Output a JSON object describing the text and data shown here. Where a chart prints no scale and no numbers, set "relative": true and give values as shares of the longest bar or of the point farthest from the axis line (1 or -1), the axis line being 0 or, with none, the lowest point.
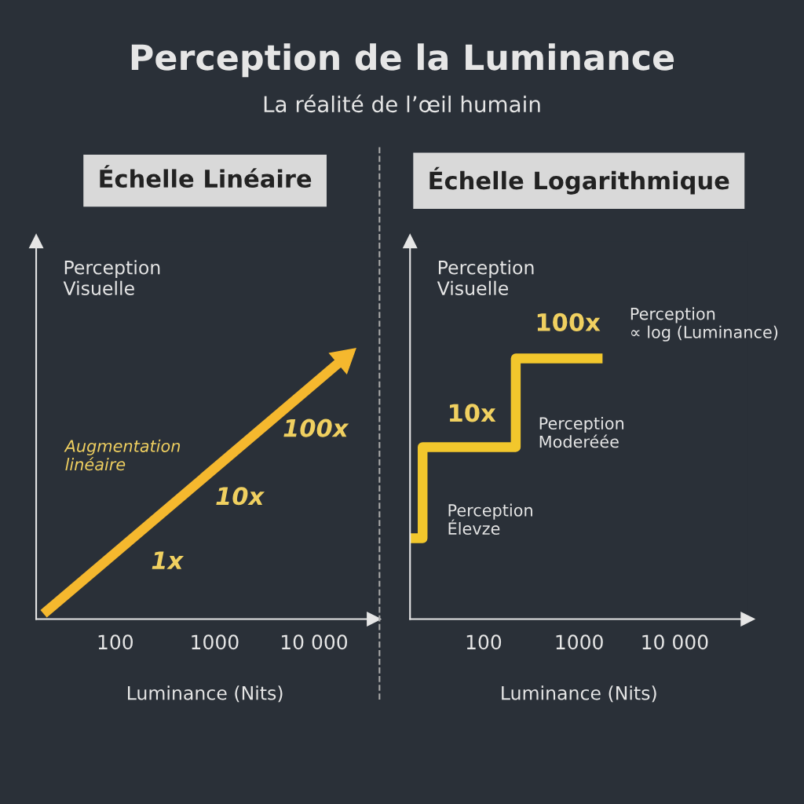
{
  "chart_data": [
    {
      "type": "line",
      "title": "Échelle Linéaire",
      "xlabel": "Luminance (Nits)",
      "ylabel": "Perception Visuelle",
      "relative": true,
      "log": "x",
      "xlim": [
        16,
        40000
      ],
      "xticks": [
        100,
        1000,
        {
          "value": 10000,
          "label": "10 000"
        }
      ],
      "tick_labels": "x",
      "grid": false,
      "series": [
        {
          "color": "#f5b82e",
          "x": [
            19,
            20000
          ],
          "values": [
            0.02,
            1
          ]
        }
      ],
      "annotations": [
        "Perception de la Luminance",
        "La réalité de l’œil humain",
        "1x",
        "10x",
        "100x",
        "Augmentation\nlinéaire"
      ]
    },
    {
      "type": "step",
      "title": "Échelle Logarithmique",
      "xlabel": "Luminance (Nits)",
      "ylabel": "Perception Visuelle",
      "relative": true,
      "log": "x",
      "xlim": [
        17,
        58000
      ],
      "xticks": [
        100,
        1000,
        {
          "value": 10000,
          "label": "10 000"
        }
      ],
      "tick_labels": "x",
      "grid": false,
      "series": [
        {
          "color": "#f2c72c",
          "x": [
            17,
            23,
            217,
            1560
          ],
          "values": [
            0.31,
            0.66,
            1,
            1
          ]
        }
      ],
      "annotations": [
        "10x",
        "100x",
        "Perception\n∝ log (Luminance)",
        "Perception\nModeréée",
        "Perception\nÉlevze"
      ]
    }
  ]
}
